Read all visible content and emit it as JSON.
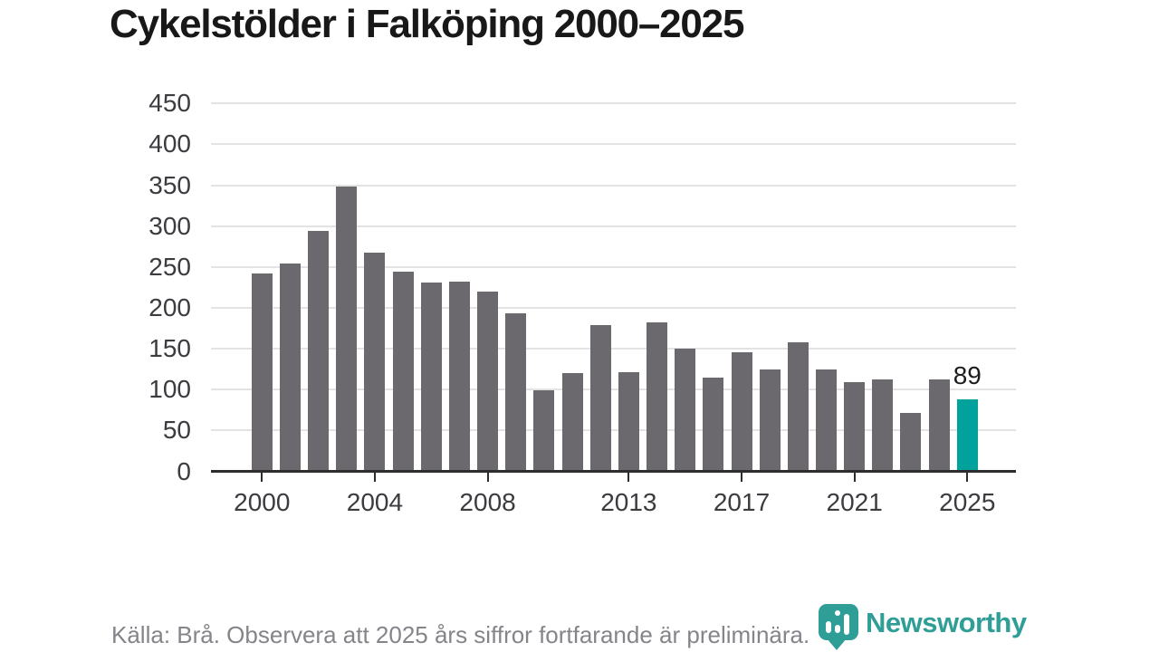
{
  "title": "Cykelstölder i Falköping 2000–2025",
  "footer": {
    "source": "Källa: Brå. Observera att 2025 års siffror fortfarande är preliminära."
  },
  "logo": {
    "wordmark": "Newsworthy",
    "icon": "newsworthy-bubble-barchart-icon"
  },
  "colors": {
    "bar": "#6b686e",
    "highlight": "#00a29b",
    "axis": "#2d2d2d",
    "gridline": "#e3e3e3",
    "title_text": "#181818",
    "tick_label": "#3b3b40",
    "footer_text": "#84848a",
    "brand_teal": "#2f9e97",
    "annotation_text": "#1d1d1d"
  },
  "chart_data": {
    "type": "bar",
    "title": "Cykelstölder i Falköping 2000–2025",
    "categories": [
      2000,
      2001,
      2002,
      2003,
      2004,
      2005,
      2006,
      2007,
      2008,
      2009,
      2010,
      2011,
      2012,
      2013,
      2014,
      2015,
      2016,
      2017,
      2018,
      2019,
      2020,
      2021,
      2022,
      2023,
      2024,
      2025
    ],
    "values": [
      243,
      255,
      295,
      349,
      268,
      245,
      231,
      233,
      221,
      194,
      100,
      121,
      180,
      122,
      183,
      151,
      115,
      146,
      125,
      158,
      125,
      110,
      113,
      72,
      113,
      89
    ],
    "highlight_category": 2025,
    "highlight_value_label": "89",
    "xlabel": "",
    "ylabel": "",
    "ylim": [
      0,
      450
    ],
    "y_ticks": [
      0,
      50,
      100,
      150,
      200,
      250,
      300,
      350,
      400,
      450
    ],
    "x_tick_labels": [
      2000,
      2004,
      2008,
      2013,
      2017,
      2021,
      2025
    ],
    "grid": "horizontal",
    "legend": "none"
  }
}
